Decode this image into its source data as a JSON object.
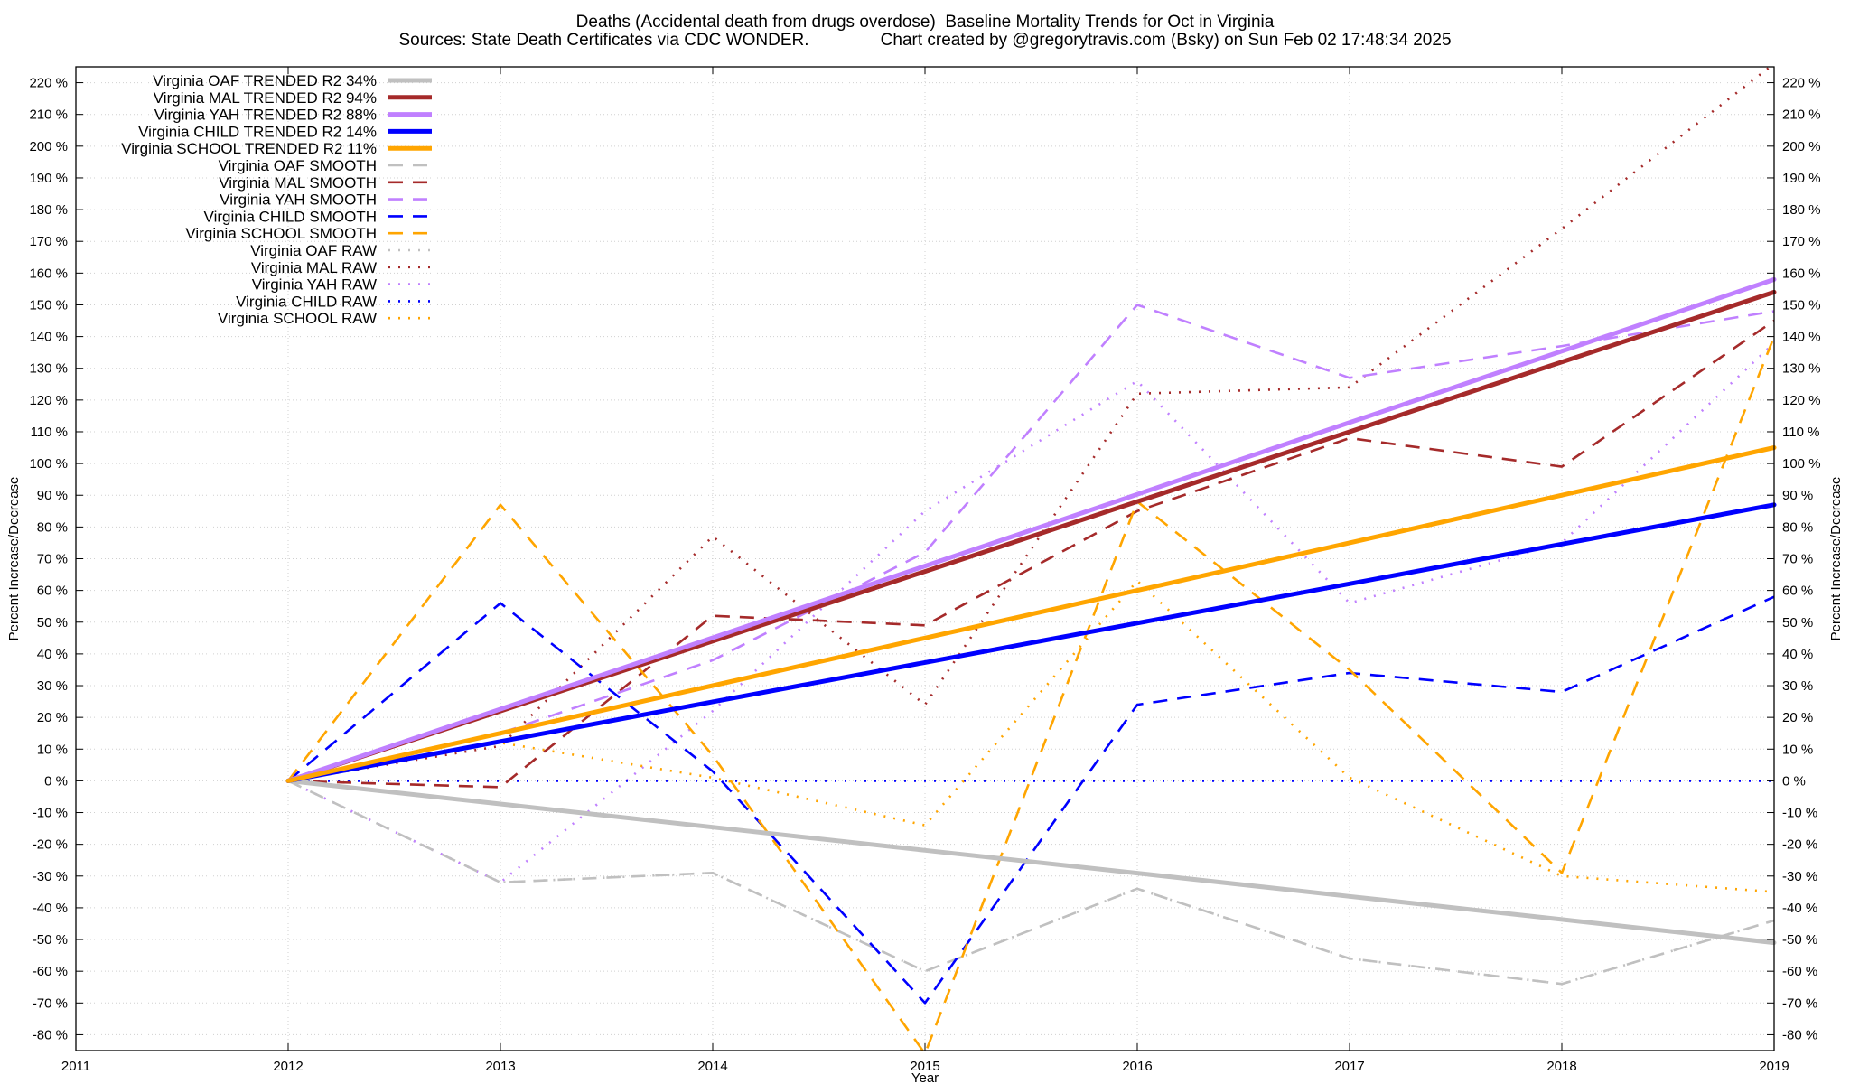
{
  "chart_data": {
    "type": "line",
    "title": "Deaths (Accidental death from drugs overdose)  Baseline Mortality Trends for Oct in Virginia",
    "subtitle": "Sources: State Death Certificates via CDC WONDER.               Chart created by @gregorytravis.com (Bsky) on Sun Feb 02 17:48:34 2025",
    "xlabel": "Year",
    "ylabel": "Percent Increase/Decrease",
    "y2label": "Percent Increase/Decrease",
    "xlim": [
      2011,
      2019
    ],
    "ylim": [
      -85,
      225
    ],
    "x_ticks": [
      2011,
      2012,
      2013,
      2014,
      2015,
      2016,
      2017,
      2018,
      2019
    ],
    "y_ticks": [
      -80,
      -70,
      -60,
      -50,
      -40,
      -30,
      -20,
      -10,
      0,
      10,
      20,
      30,
      40,
      50,
      60,
      70,
      80,
      90,
      100,
      110,
      120,
      130,
      140,
      150,
      160,
      170,
      180,
      190,
      200,
      210,
      220
    ],
    "y_tick_suffix": " %",
    "grid": true,
    "legend_position": "top-left",
    "x": [
      2012,
      2013,
      2014,
      2015,
      2016,
      2017,
      2018,
      2019
    ],
    "series": [
      {
        "name": "Virginia OAF TRENDED R2  34%",
        "color": "#c0c0c0",
        "style": "solid",
        "values": [
          0,
          -7.3,
          -14.6,
          -21.9,
          -29.1,
          -36.4,
          -43.7,
          -51
        ]
      },
      {
        "name": "Virginia MAL TRENDED R2  94%",
        "color": "#a52a2a",
        "style": "solid",
        "values": [
          0,
          22,
          44,
          66,
          88,
          110,
          132,
          154
        ]
      },
      {
        "name": "Virginia YAH TRENDED R2  88%",
        "color": "#c080ff",
        "style": "solid",
        "values": [
          0,
          22.6,
          45.1,
          67.7,
          90.3,
          112.9,
          135.4,
          158
        ]
      },
      {
        "name": "Virginia CHILD TRENDED R2  14%",
        "color": "#0000ff",
        "style": "solid",
        "values": [
          0,
          12.4,
          24.9,
          37.3,
          49.7,
          62.1,
          74.6,
          87
        ]
      },
      {
        "name": "Virginia SCHOOL TRENDED R2  11%",
        "color": "#ffa500",
        "style": "solid",
        "values": [
          0,
          15,
          30,
          45,
          60,
          75,
          90,
          105
        ]
      },
      {
        "name": "Virginia OAF SMOOTH",
        "color": "#c0c0c0",
        "style": "dashed",
        "values": [
          0,
          -32,
          -29,
          -60,
          -34,
          -56,
          -64,
          -44
        ]
      },
      {
        "name": "Virginia MAL SMOOTH",
        "color": "#a52a2a",
        "style": "dashed",
        "values": [
          0,
          -2,
          52,
          49,
          85,
          108,
          99,
          145
        ]
      },
      {
        "name": "Virginia YAH SMOOTH",
        "color": "#c080ff",
        "style": "dashed",
        "values": [
          0,
          15,
          38,
          72,
          150,
          127,
          137,
          148
        ]
      },
      {
        "name": "Virginia CHILD SMOOTH",
        "color": "#0000ff",
        "style": "dashed",
        "values": [
          0,
          56,
          3,
          -70,
          24,
          34,
          28,
          58
        ]
      },
      {
        "name": "Virginia SCHOOL SMOOTH",
        "color": "#ffa500",
        "style": "dashed",
        "values": [
          0,
          87,
          8,
          -86,
          88,
          35,
          -29,
          140
        ]
      },
      {
        "name": "Virginia OAF RAW",
        "color": "#c0c0c0",
        "style": "dotted",
        "values": [
          0,
          -32,
          -29,
          -60,
          -34,
          -56,
          -64,
          -44
        ]
      },
      {
        "name": "Virginia MAL RAW",
        "color": "#a52a2a",
        "style": "dotted",
        "values": [
          0,
          11,
          77,
          24,
          122,
          124,
          174,
          226
        ]
      },
      {
        "name": "Virginia YAH RAW",
        "color": "#c080ff",
        "style": "dotted",
        "values": [
          0,
          -32,
          22,
          85,
          126,
          56,
          75,
          138
        ]
      },
      {
        "name": "Virginia CHILD RAW",
        "color": "#0000ff",
        "style": "dotted",
        "values": [
          0,
          0,
          0,
          0,
          0,
          0,
          0,
          0
        ]
      },
      {
        "name": "Virginia SCHOOL RAW",
        "color": "#ffa500",
        "style": "dotted",
        "values": [
          0,
          12,
          1,
          -14,
          63,
          1,
          -30,
          -35
        ]
      }
    ]
  }
}
